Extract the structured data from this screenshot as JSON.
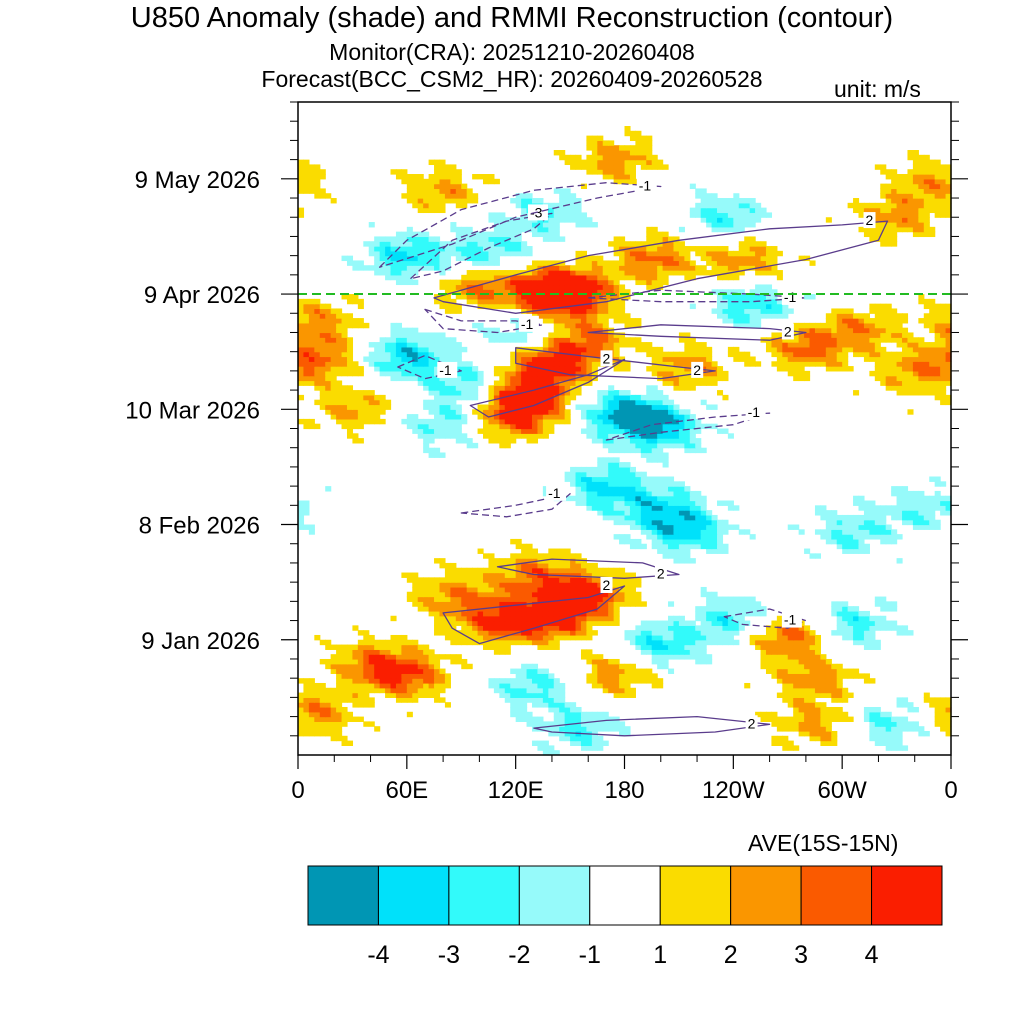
{
  "title": "U850 Anomaly (shade) and RMMI Reconstruction (contour)",
  "subtitle_monitor": "Monitor(CRA): 20251210-20260408",
  "subtitle_forecast": "Forecast(BCC_CSM2_HR): 20260409-20260528",
  "unit_label": "unit: m/s",
  "average_label": "AVE(15S-15N)",
  "chart_data": {
    "type": "heatmap",
    "title": "U850 Anomaly (shade) and RMMI Reconstruction (contour)",
    "xlabel": "AVE(15S-15N)",
    "ylabel": "",
    "x_range_deg_east": [
      0,
      360
    ],
    "y_range_dates": [
      "2025-12-10",
      "2026-05-28"
    ],
    "x_ticks": [
      {
        "deg": 0,
        "label": "0"
      },
      {
        "deg": 60,
        "label": "60E"
      },
      {
        "deg": 120,
        "label": "120E"
      },
      {
        "deg": 180,
        "label": "180"
      },
      {
        "deg": 240,
        "label": "120W"
      },
      {
        "deg": 300,
        "label": "60W"
      },
      {
        "deg": 360,
        "label": "0"
      }
    ],
    "y_ticks": [
      {
        "day": 30,
        "label": "9 Jan 2026"
      },
      {
        "day": 60,
        "label": "8 Feb 2026"
      },
      {
        "day": 90,
        "label": "10 Mar 2026"
      },
      {
        "day": 120,
        "label": "9 Apr 2026"
      },
      {
        "day": 150,
        "label": "9 May 2026"
      }
    ],
    "forecast_start_day": 120,
    "forecast_start_date": "2026-04-09",
    "colorbar": {
      "levels": [
        -4,
        -3,
        -2,
        -1,
        1,
        2,
        3,
        4
      ],
      "labels": [
        "-4",
        "-3",
        "-2",
        "-1",
        "1",
        "2",
        "3",
        "4"
      ],
      "colors": [
        "#0096b4",
        "#00e1fa",
        "#32fafa",
        "#96fafa",
        "#ffffff",
        "#fadc00",
        "#fa9600",
        "#fa5a00",
        "#fa1e00"
      ]
    },
    "anomaly_features": [
      {
        "lon": 140,
        "day": 121,
        "value": 4.5
      },
      {
        "lon": 150,
        "day": 120,
        "value": 4.5
      },
      {
        "lon": 195,
        "day": 129,
        "value": 3.2
      },
      {
        "lon": 245,
        "day": 129,
        "value": 2.6
      },
      {
        "lon": 100,
        "day": 122,
        "value": 3.0
      },
      {
        "lon": 60,
        "day": 130,
        "value": -3.2
      },
      {
        "lon": 105,
        "day": 131,
        "value": -2.6
      },
      {
        "lon": 135,
        "day": 141,
        "value": -2.2
      },
      {
        "lon": 175,
        "day": 155,
        "value": 2.6
      },
      {
        "lon": 80,
        "day": 147,
        "value": 2.3
      },
      {
        "lon": 140,
        "day": 102,
        "value": 4.5
      },
      {
        "lon": 125,
        "day": 94,
        "value": 4.5
      },
      {
        "lon": 120,
        "day": 88,
        "value": 3.8
      },
      {
        "lon": 160,
        "day": 108,
        "value": 3.0
      },
      {
        "lon": 215,
        "day": 101,
        "value": 2.6
      },
      {
        "lon": 180,
        "day": 89,
        "value": -4.2
      },
      {
        "lon": 200,
        "day": 85,
        "value": -3.4
      },
      {
        "lon": 170,
        "day": 70,
        "value": -3.2
      },
      {
        "lon": 200,
        "day": 64,
        "value": -3.0
      },
      {
        "lon": 215,
        "day": 58,
        "value": -3.0
      },
      {
        "lon": 60,
        "day": 104,
        "value": -3.6
      },
      {
        "lon": 95,
        "day": 96,
        "value": -2.6
      },
      {
        "lon": 125,
        "day": 110,
        "value": -2.2
      },
      {
        "lon": 80,
        "day": 86,
        "value": -2.0
      },
      {
        "lon": 12,
        "day": 103,
        "value": 3.0
      },
      {
        "lon": 10,
        "day": 113,
        "value": 2.6
      },
      {
        "lon": 30,
        "day": 90,
        "value": 2.2
      },
      {
        "lon": 280,
        "day": 106,
        "value": 3.2
      },
      {
        "lon": 310,
        "day": 111,
        "value": 2.6
      },
      {
        "lon": 340,
        "day": 100,
        "value": 2.4
      },
      {
        "lon": 140,
        "day": 36,
        "value": 4.5
      },
      {
        "lon": 110,
        "day": 35,
        "value": 3.8
      },
      {
        "lon": 160,
        "day": 42,
        "value": 4.0
      },
      {
        "lon": 130,
        "day": 47,
        "value": 3.0
      },
      {
        "lon": 85,
        "day": 42,
        "value": 2.6
      },
      {
        "lon": 60,
        "day": 21,
        "value": 3.6
      },
      {
        "lon": 40,
        "day": 24,
        "value": 2.6
      },
      {
        "lon": 10,
        "day": 11,
        "value": 2.8
      },
      {
        "lon": 175,
        "day": 21,
        "value": 2.6
      },
      {
        "lon": 270,
        "day": 31,
        "value": 3.6
      },
      {
        "lon": 285,
        "day": 20,
        "value": 2.6
      },
      {
        "lon": 285,
        "day": 8,
        "value": 2.4
      },
      {
        "lon": 200,
        "day": 29,
        "value": -3.0
      },
      {
        "lon": 240,
        "day": 35,
        "value": -2.6
      },
      {
        "lon": 305,
        "day": 34,
        "value": -2.6
      },
      {
        "lon": 155,
        "day": 7,
        "value": -2.4
      },
      {
        "lon": 130,
        "day": 18,
        "value": -2.4
      },
      {
        "lon": 325,
        "day": 8,
        "value": -2.2
      },
      {
        "lon": 305,
        "day": 58,
        "value": -2.2
      },
      {
        "lon": 345,
        "day": 64,
        "value": -2.0
      },
      {
        "lon": 330,
        "day": 140,
        "value": 2.6
      },
      {
        "lon": 350,
        "day": 149,
        "value": 2.3
      },
      {
        "lon": 235,
        "day": 140,
        "value": -2.4
      },
      {
        "lon": 250,
        "day": 117,
        "value": -2.8
      }
    ],
    "contours": [
      {
        "label": "2",
        "value": 2,
        "style": "solid",
        "points": [
          [
            75,
            119
          ],
          [
            120,
            125
          ],
          [
            160,
            130
          ],
          [
            210,
            134
          ],
          [
            260,
            137
          ],
          [
            300,
            138
          ],
          [
            325,
            139
          ],
          [
            320,
            134
          ],
          [
            280,
            129
          ],
          [
            220,
            124
          ],
          [
            170,
            118
          ],
          [
            120,
            115
          ],
          [
            80,
            118
          ]
        ]
      },
      {
        "label": "-3",
        "value": -3,
        "style": "dashed",
        "points": [
          [
            62,
            124
          ],
          [
            85,
            134
          ],
          [
            115,
            139
          ],
          [
            140,
            141
          ],
          [
            130,
            137
          ],
          [
            105,
            132
          ],
          [
            80,
            126
          ]
        ]
      },
      {
        "label": "-1",
        "value": -1,
        "style": "dashed",
        "points": [
          [
            45,
            127
          ],
          [
            60,
            134
          ],
          [
            90,
            142
          ],
          [
            130,
            147
          ],
          [
            170,
            149
          ],
          [
            200,
            148
          ],
          [
            165,
            145
          ],
          [
            120,
            140
          ],
          [
            85,
            133
          ]
        ]
      },
      {
        "label": "-1",
        "value": -1,
        "style": "dashed",
        "points": [
          [
            160,
            119
          ],
          [
            200,
            121
          ],
          [
            250,
            120
          ],
          [
            280,
            119
          ],
          [
            250,
            118
          ],
          [
            200,
            118
          ]
        ]
      },
      {
        "label": "-1",
        "value": -1,
        "style": "dashed",
        "points": [
          [
            70,
            116
          ],
          [
            90,
            113
          ],
          [
            120,
            113
          ],
          [
            135,
            112
          ],
          [
            110,
            110
          ],
          [
            80,
            111
          ]
        ]
      },
      {
        "label": "2",
        "value": 2,
        "style": "solid",
        "points": [
          [
            160,
            110
          ],
          [
            200,
            112
          ],
          [
            260,
            111
          ],
          [
            280,
            110
          ],
          [
            260,
            108
          ],
          [
            200,
            109
          ]
        ]
      },
      {
        "label": "2",
        "value": 2,
        "style": "solid",
        "points": [
          [
            120,
            106
          ],
          [
            155,
            104
          ],
          [
            210,
            101
          ],
          [
            230,
            100
          ],
          [
            200,
            98
          ],
          [
            150,
            99
          ],
          [
            120,
            102
          ]
        ]
      },
      {
        "label": "2",
        "value": 2,
        "style": "solid",
        "points": [
          [
            95,
            91
          ],
          [
            130,
            95
          ],
          [
            160,
            99
          ],
          [
            180,
            103
          ],
          [
            160,
            97
          ],
          [
            130,
            91
          ],
          [
            105,
            88
          ]
        ]
      },
      {
        "label": "-1",
        "value": -1,
        "style": "dashed",
        "points": [
          [
            55,
            101
          ],
          [
            70,
            104
          ],
          [
            90,
            100
          ],
          [
            70,
            98
          ]
        ]
      },
      {
        "label": "-1",
        "value": -1,
        "style": "dashed",
        "points": [
          [
            170,
            82
          ],
          [
            200,
            84
          ],
          [
            240,
            86
          ],
          [
            260,
            89
          ],
          [
            230,
            88
          ],
          [
            195,
            86
          ]
        ]
      },
      {
        "label": "-1",
        "value": -1,
        "style": "dashed",
        "points": [
          [
            90,
            63
          ],
          [
            120,
            65
          ],
          [
            150,
            68
          ],
          [
            140,
            64
          ],
          [
            115,
            62
          ]
        ]
      },
      {
        "label": "2",
        "value": 2,
        "style": "solid",
        "points": [
          [
            110,
            49
          ],
          [
            140,
            51
          ],
          [
            190,
            50
          ],
          [
            210,
            47
          ],
          [
            180,
            46
          ],
          [
            130,
            47
          ]
        ]
      },
      {
        "label": "2",
        "value": 2,
        "style": "solid",
        "points": [
          [
            80,
            37
          ],
          [
            120,
            39
          ],
          [
            160,
            41
          ],
          [
            180,
            44
          ],
          [
            165,
            38
          ],
          [
            130,
            33
          ],
          [
            100,
            29
          ],
          [
            85,
            33
          ]
        ]
      },
      {
        "label": "-1",
        "value": -1,
        "style": "dashed",
        "points": [
          [
            235,
            36
          ],
          [
            260,
            38
          ],
          [
            280,
            35
          ],
          [
            270,
            33
          ],
          [
            245,
            34
          ]
        ]
      },
      {
        "label": "2",
        "value": 2,
        "style": "solid",
        "points": [
          [
            130,
            7
          ],
          [
            170,
            9
          ],
          [
            220,
            10
          ],
          [
            260,
            8
          ],
          [
            230,
            6
          ],
          [
            180,
            5
          ],
          [
            140,
            6
          ]
        ]
      }
    ]
  },
  "colorbar_labels": [
    "-4",
    "-3",
    "-2",
    "-1",
    "1",
    "2",
    "3",
    "4"
  ]
}
